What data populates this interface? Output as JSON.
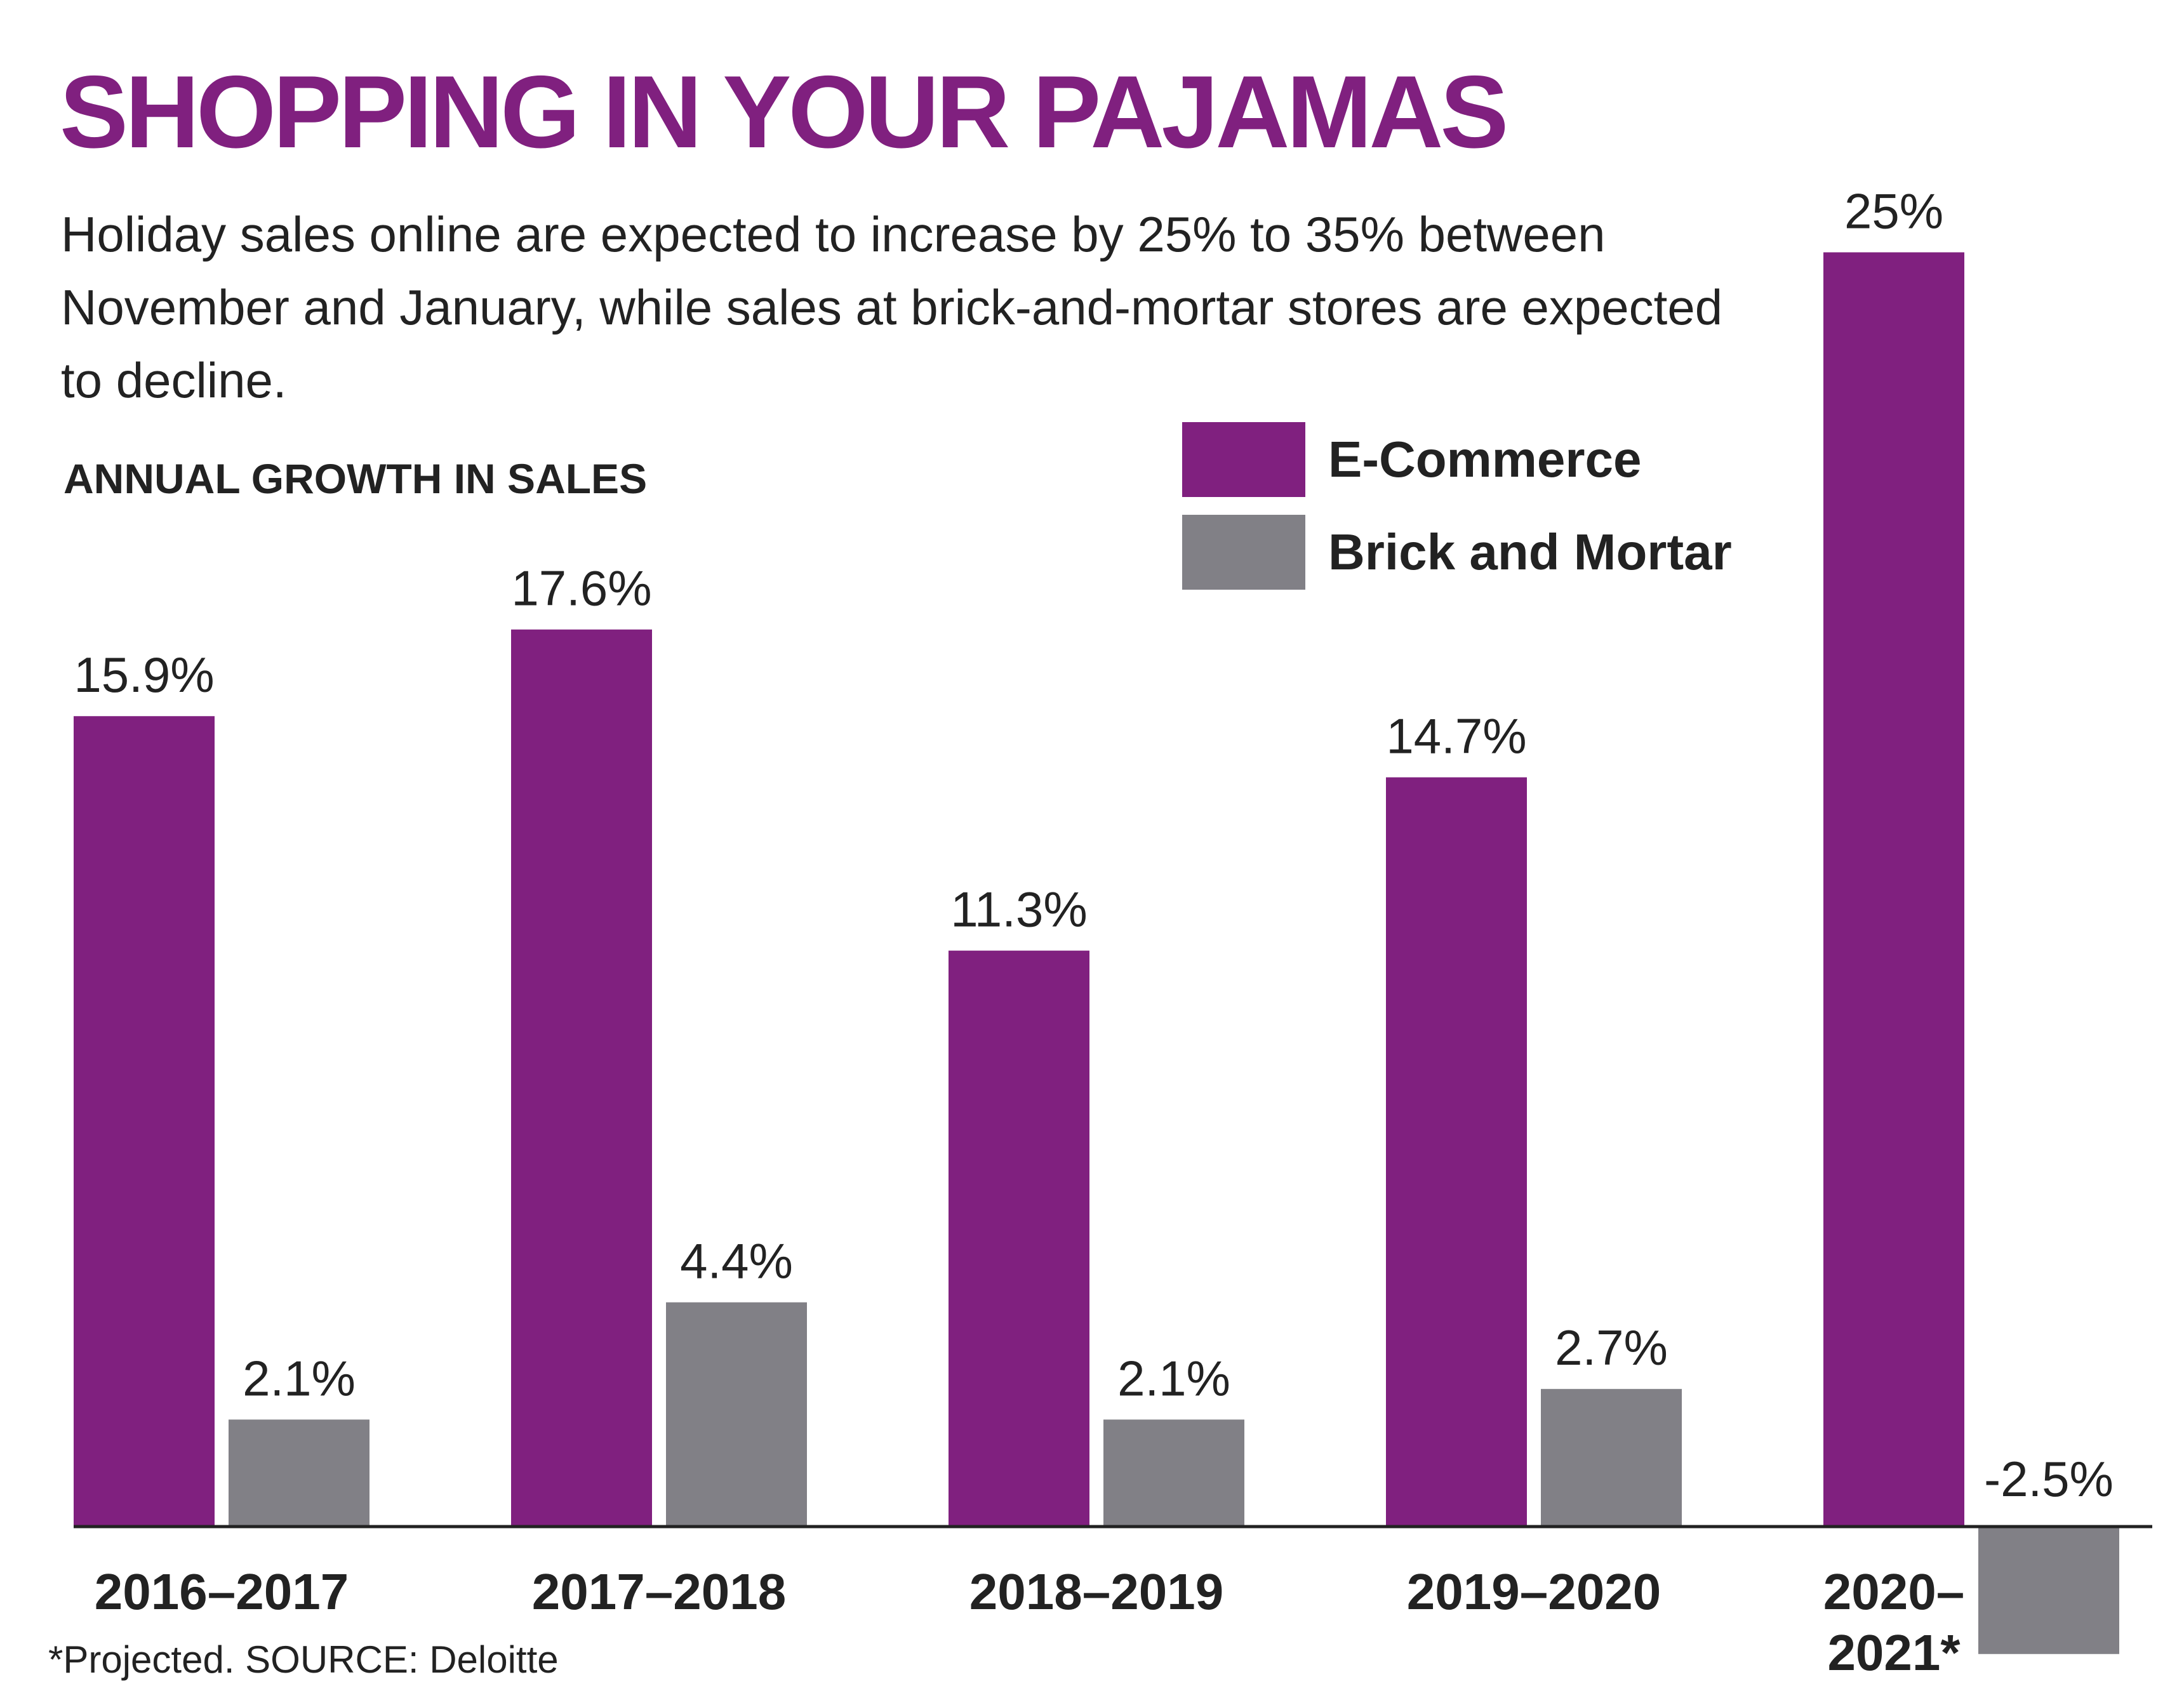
{
  "header": {
    "title": "SHOPPING IN YOUR PAJAMAS",
    "subtitle": "Holiday sales online are expected to increase by 25% to 35% between November and January, while sales at brick-and-mortar stores are expected to decline.",
    "section_label": "ANNUAL GROWTH IN SALES"
  },
  "legend": {
    "items": [
      {
        "label": "E-Commerce",
        "color": "#80207f"
      },
      {
        "label": "Brick and Mortar",
        "color": "#818086"
      }
    ]
  },
  "footer": {
    "source": "*Projected.  SOURCE: Deloitte"
  },
  "chart_data": {
    "type": "bar",
    "title": "SHOPPING IN YOUR PAJAMAS",
    "subtitle": "ANNUAL GROWTH IN SALES",
    "categories": [
      "2016–2017",
      "2017–2018",
      "2018–2019",
      "2019–2020",
      "2020–2021*"
    ],
    "series": [
      {
        "name": "E-Commerce",
        "color": "#80207f",
        "values": [
          15.9,
          17.6,
          11.3,
          14.7,
          25
        ],
        "labels": [
          "15.9%",
          "17.6%",
          "11.3%",
          "14.7%",
          "25%"
        ]
      },
      {
        "name": "Brick and Mortar",
        "color": "#818086",
        "values": [
          2.1,
          4.4,
          2.1,
          2.7,
          -2.5
        ],
        "labels": [
          "2.1%",
          "4.4%",
          "2.1%",
          "2.7%",
          "-2.5%"
        ]
      }
    ],
    "ylim": [
      -2.5,
      25
    ],
    "grid": false,
    "legend_position": "top-right",
    "xlabel": "",
    "ylabel": ""
  }
}
